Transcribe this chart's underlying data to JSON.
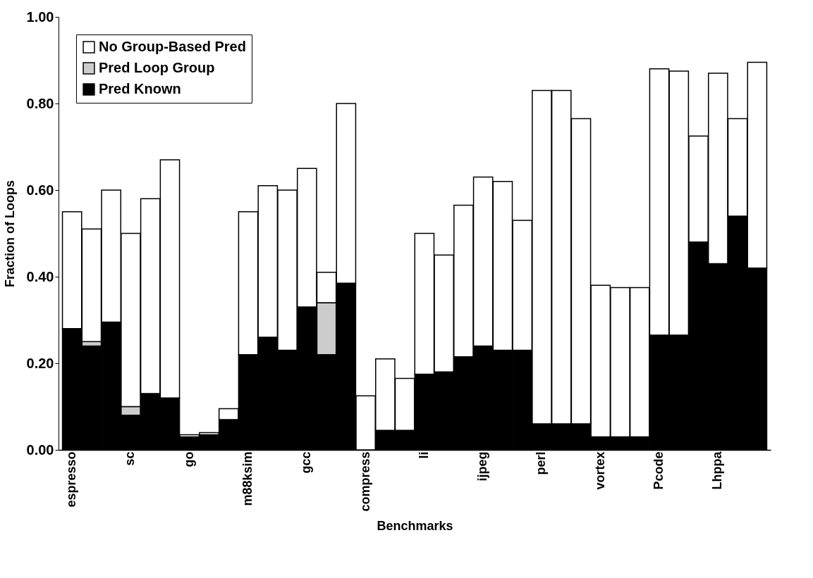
{
  "chart_data": {
    "type": "bar",
    "stacked": true,
    "xlabel": "Benchmarks",
    "ylabel": "Fraction of Loops",
    "categories": [
      "espresso",
      null,
      null,
      "sc",
      null,
      null,
      "go",
      null,
      null,
      "m88ksim",
      null,
      null,
      "gcc",
      null,
      null,
      "compress",
      null,
      null,
      "li",
      null,
      null,
      "ijpeg",
      null,
      null,
      "perl",
      null,
      null,
      "vortex",
      null,
      null,
      "Pcode",
      null,
      null,
      "Lhppa",
      null,
      null
    ],
    "series": [
      {
        "name": "Pred Known",
        "color": "#000000",
        "values": [
          0.28,
          0.24,
          0.295,
          0.08,
          0.13,
          0.12,
          0.03,
          0.035,
          0.07,
          0.22,
          0.26,
          0.23,
          0.33,
          0.22,
          0.385,
          0,
          0.045,
          0.045,
          0.175,
          0.18,
          0.215,
          0.24,
          0.23,
          0.23,
          0.06,
          0.06,
          0.06,
          0.03,
          0.03,
          0.03,
          0.265,
          0.265,
          0.48,
          0.43,
          0.54,
          0.42
        ]
      },
      {
        "name": "Pred Loop Group",
        "color": "#cccccc",
        "values": [
          0,
          0.01,
          0,
          0.02,
          0,
          0,
          0,
          0,
          0,
          0,
          0,
          0,
          0,
          0.12,
          0,
          0,
          0,
          0,
          0,
          0,
          0,
          0,
          0,
          0,
          0,
          0,
          0,
          0,
          0,
          0,
          0,
          0,
          0,
          0,
          0,
          0
        ]
      },
      {
        "name": "No Group-Based Pred",
        "color": "#ffffff",
        "values": [
          0.27,
          0.26,
          0.305,
          0.4,
          0.45,
          0.55,
          0.005,
          0.005,
          0.025,
          0.33,
          0.35,
          0.37,
          0.32,
          0.07,
          0.415,
          0.125,
          0.165,
          0.12,
          0.325,
          0.27,
          0.35,
          0.39,
          0.39,
          0.3,
          0.77,
          0.77,
          0.705,
          0.35,
          0.345,
          0.345,
          0.615,
          0.61,
          0.245,
          0.44,
          0.225,
          0.475
        ]
      }
    ],
    "ylim": [
      0,
      1
    ],
    "yticks": [
      {
        "value": 0,
        "label": "0.00"
      },
      {
        "value": 0.2,
        "label": "0.20"
      },
      {
        "value": 0.4,
        "label": "0.40"
      },
      {
        "value": 0.6,
        "label": "0.60"
      },
      {
        "value": 0.8,
        "label": "0.80"
      },
      {
        "value": 1,
        "label": "1.00"
      }
    ],
    "grid": false,
    "legend": "top left"
  }
}
